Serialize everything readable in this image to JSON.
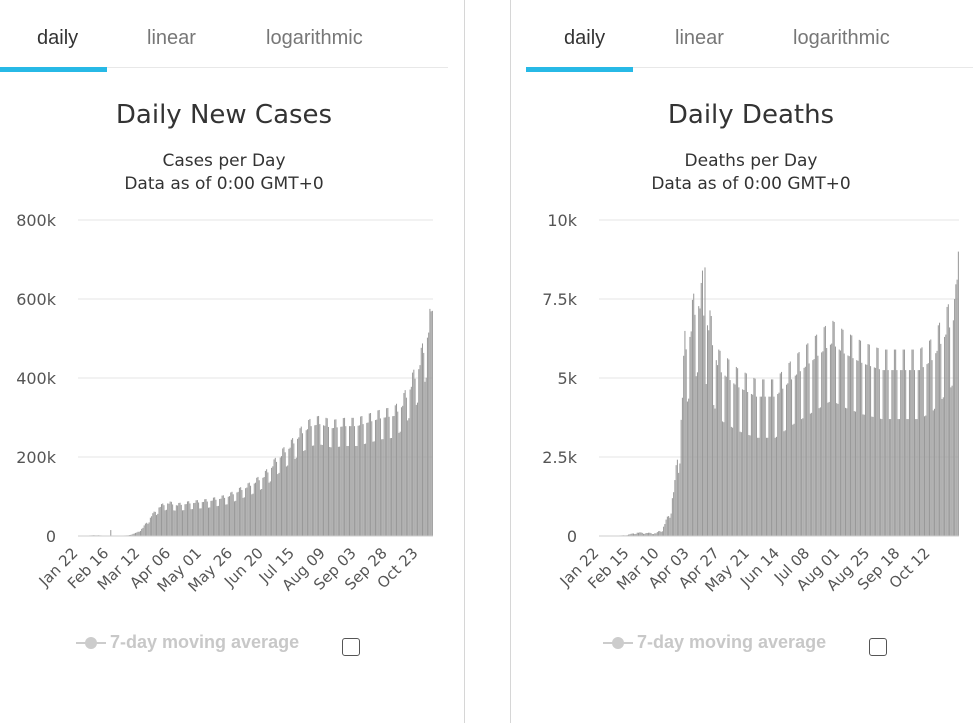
{
  "tabs": [
    "daily",
    "linear",
    "logarithmic"
  ],
  "legend_label": "7-day moving average",
  "colors": {
    "bar": "#999999",
    "accent": "#27b9e6",
    "grid": "#e6e6e6",
    "legend": "#cccccc"
  },
  "chart_data": [
    {
      "type": "bar",
      "title": "Daily New Cases",
      "subtitle": [
        "Cases per Day",
        "Data as of 0:00 GMT+0"
      ],
      "ylim": [
        0,
        800000
      ],
      "yticks": [
        0,
        200000,
        400000,
        600000,
        800000
      ],
      "ytick_labels": [
        "0",
        "200k",
        "400k",
        "600k",
        "800k"
      ],
      "x_start": "Jan 22",
      "x_labels": [
        "Jan 22",
        "Feb 16",
        "Mar 12",
        "Apr 06",
        "May 01",
        "May 26",
        "Jun 20",
        "Jul 15",
        "Aug 09",
        "Sep 03",
        "Sep 28",
        "Oct 23"
      ],
      "x_label_index": [
        0,
        25,
        50,
        75,
        100,
        125,
        150,
        175,
        200,
        225,
        250,
        275
      ],
      "n_days": 287,
      "grid": true,
      "anchors": [
        [
          0,
          500
        ],
        [
          15,
          2000
        ],
        [
          22,
          500
        ],
        [
          40,
          1500
        ],
        [
          47,
          8000
        ],
        [
          52,
          20000
        ],
        [
          58,
          45000
        ],
        [
          65,
          70000
        ],
        [
          72,
          80000
        ],
        [
          80,
          75000
        ],
        [
          90,
          80000
        ],
        [
          105,
          85000
        ],
        [
          120,
          95000
        ],
        [
          130,
          110000
        ],
        [
          140,
          125000
        ],
        [
          150,
          145000
        ],
        [
          158,
          175000
        ],
        [
          165,
          200000
        ],
        [
          172,
          220000
        ],
        [
          180,
          250000
        ],
        [
          188,
          270000
        ],
        [
          195,
          275000
        ],
        [
          205,
          265000
        ],
        [
          215,
          270000
        ],
        [
          225,
          270000
        ],
        [
          235,
          280000
        ],
        [
          245,
          290000
        ],
        [
          255,
          295000
        ],
        [
          262,
          320000
        ],
        [
          268,
          360000
        ],
        [
          274,
          400000
        ],
        [
          279,
          450000
        ],
        [
          283,
          500000
        ],
        [
          286,
          520000
        ]
      ],
      "weekly_amp": 0.12,
      "spikes": [
        [
          26,
          15000
        ],
        [
          284,
          575000
        ],
        [
          286,
          570000
        ]
      ],
      "legend": "7-day moving average"
    },
    {
      "type": "bar",
      "title": "Daily Deaths",
      "subtitle": [
        "Deaths per Day",
        "Data as of 0:00 GMT+0"
      ],
      "ylim": [
        0,
        10000
      ],
      "yticks": [
        0,
        2500,
        5000,
        7500,
        10000
      ],
      "ytick_labels": [
        "0",
        "2.5k",
        "5k",
        "7.5k",
        "10k"
      ],
      "x_start": "Jan 22",
      "x_labels": [
        "Jan 22",
        "Feb 15",
        "Mar 10",
        "Apr 03",
        "Apr 27",
        "May 21",
        "Jun 14",
        "Jul 08",
        "Aug 01",
        "Aug 25",
        "Sep 18",
        "Oct 12"
      ],
      "x_label_index": [
        0,
        24,
        48,
        72,
        96,
        120,
        144,
        168,
        192,
        216,
        240,
        264
      ],
      "n_days": 287,
      "grid": true,
      "anchors": [
        [
          0,
          0
        ],
        [
          20,
          20
        ],
        [
          24,
          50
        ],
        [
          30,
          100
        ],
        [
          45,
          80
        ],
        [
          50,
          200
        ],
        [
          55,
          600
        ],
        [
          60,
          1500
        ],
        [
          65,
          3500
        ],
        [
          68,
          5500
        ],
        [
          72,
          6000
        ],
        [
          78,
          7000
        ],
        [
          85,
          6500
        ],
        [
          95,
          5000
        ],
        [
          110,
          4500
        ],
        [
          125,
          4200
        ],
        [
          140,
          4200
        ],
        [
          155,
          4800
        ],
        [
          170,
          5300
        ],
        [
          185,
          5800
        ],
        [
          195,
          5500
        ],
        [
          210,
          5200
        ],
        [
          225,
          5000
        ],
        [
          240,
          5000
        ],
        [
          255,
          5000
        ],
        [
          265,
          5300
        ],
        [
          275,
          6000
        ],
        [
          282,
          6500
        ],
        [
          286,
          7000
        ]
      ],
      "weekly_amp": 0.2,
      "spikes": [
        [
          82,
          8400
        ],
        [
          84,
          8500
        ],
        [
          283,
          7500
        ],
        [
          286,
          9000
        ]
      ],
      "legend": "7-day moving average"
    }
  ]
}
